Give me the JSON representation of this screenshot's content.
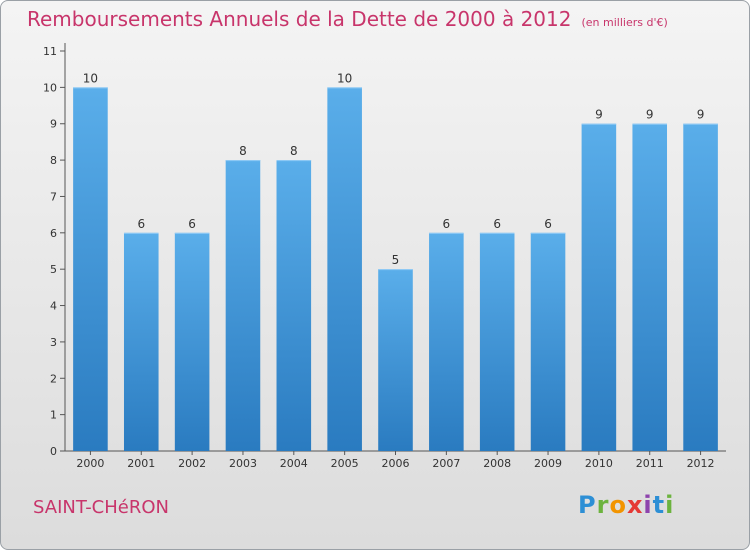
{
  "chart_data": {
    "type": "bar",
    "title": "Remboursements Annuels de la Dette de 2000 à 2012",
    "unit": "(en milliers d'€)",
    "categories": [
      "2000",
      "2001",
      "2002",
      "2003",
      "2004",
      "2005",
      "2006",
      "2007",
      "2008",
      "2009",
      "2010",
      "2011",
      "2012"
    ],
    "values": [
      10,
      6,
      6,
      8,
      8,
      10,
      5,
      6,
      6,
      6,
      9,
      9,
      9
    ],
    "xlabel": "",
    "ylabel": "",
    "ylim": [
      0,
      11
    ],
    "yticks": [
      0,
      1,
      2,
      3,
      4,
      5,
      6,
      7,
      8,
      9,
      10,
      11
    ],
    "grid": false,
    "bar_color": "#3f9be0"
  },
  "commune": "SAINT-CHéRON",
  "logo": {
    "text": "Proxiti",
    "letters": [
      "P",
      "r",
      "o",
      "x",
      "i",
      "t",
      "i"
    ]
  }
}
